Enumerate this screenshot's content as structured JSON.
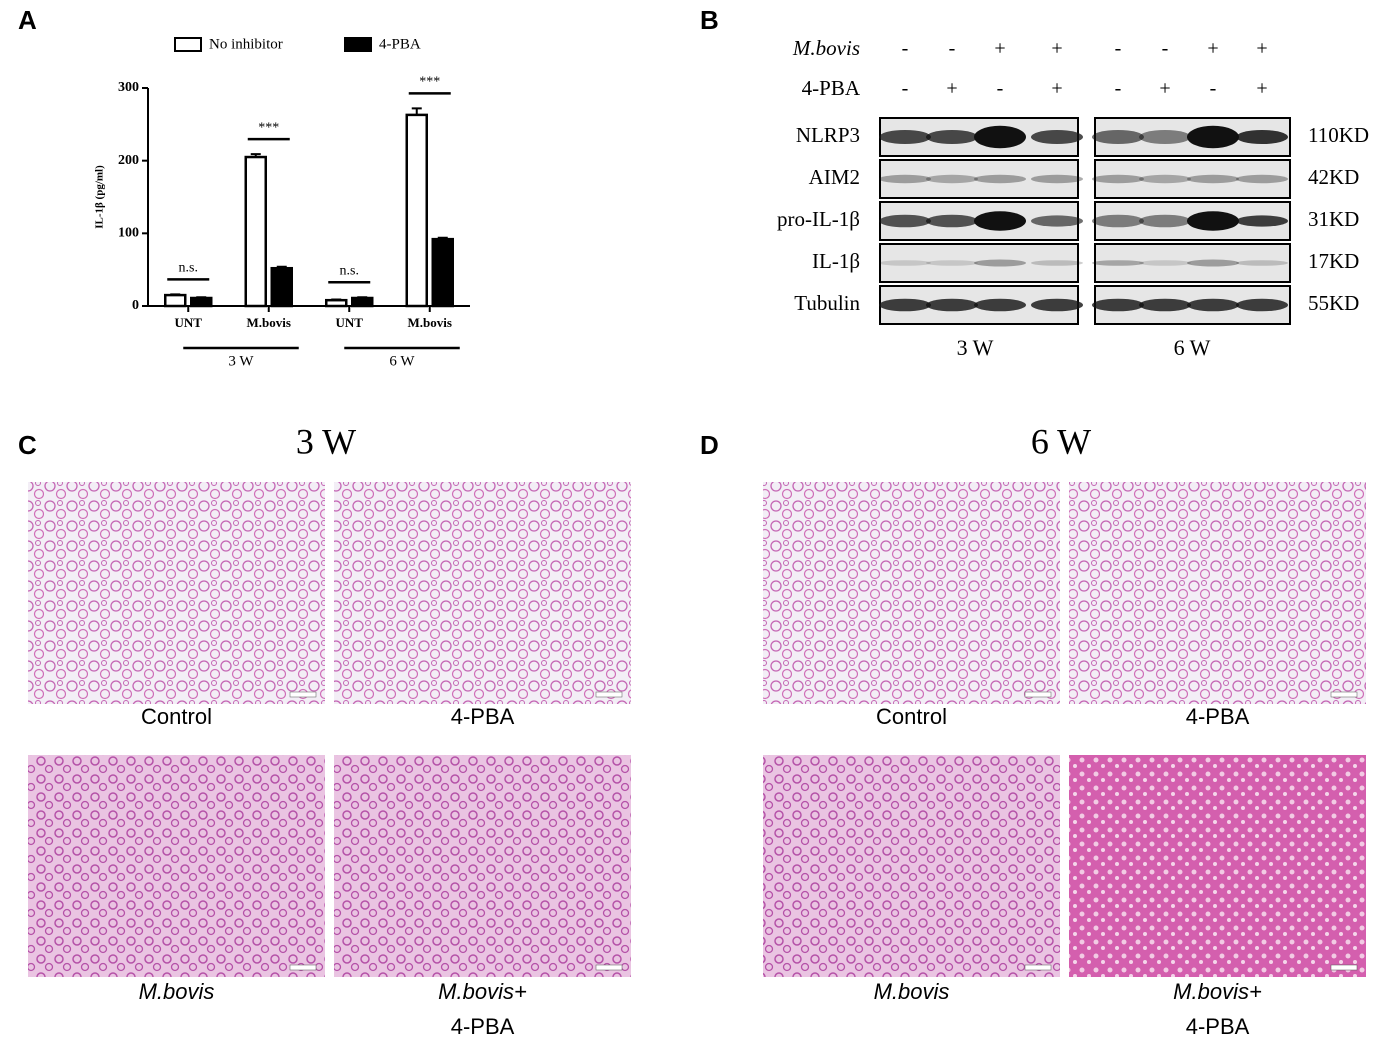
{
  "panel_labels": [
    "A",
    "B",
    "C",
    "D"
  ],
  "chart_data": {
    "type": "bar",
    "y_label": "IL-1β (pg/ml)",
    "categories": [
      "UNT",
      "M.bovis",
      "UNT",
      "M.bovis"
    ],
    "group_labels": [
      "3 W",
      "6 W"
    ],
    "series": [
      {
        "name": "No inhibitor",
        "color": "#ffffff",
        "values": [
          15,
          205,
          8,
          263
        ],
        "errors": [
          1,
          4,
          1,
          9
        ]
      },
      {
        "name": "4-PBA",
        "color": "#000000",
        "values": [
          11,
          52,
          11,
          92
        ],
        "errors": [
          1,
          2,
          1,
          2
        ]
      }
    ],
    "annotations": [
      "n.s.",
      "***",
      "n.s.",
      "***"
    ],
    "ylim": [
      0,
      300
    ],
    "yticks": [
      0,
      100,
      200,
      300
    ]
  },
  "blot": {
    "treatments": [
      {
        "name": "M.bovis",
        "signs": [
          "-",
          "-",
          "+",
          "+",
          "-",
          "-",
          "+",
          "+"
        ]
      },
      {
        "name": "4-PBA",
        "signs": [
          "-",
          "+",
          "-",
          "+",
          "-",
          "+",
          "-",
          "+"
        ]
      }
    ],
    "rows": [
      {
        "protein": "NLRP3",
        "size": "110KD"
      },
      {
        "protein": "AIM2",
        "size": "42KD"
      },
      {
        "protein": "pro-IL-1β",
        "size": "31KD"
      },
      {
        "protein": "IL-1β",
        "size": "17KD"
      },
      {
        "protein": "Tubulin",
        "size": "55KD"
      }
    ],
    "groups": [
      "3 W",
      "6 W"
    ]
  },
  "histology": [
    {
      "title": "3 W",
      "images": [
        {
          "label": "Control"
        },
        {
          "label": "4-PBA"
        },
        {
          "label": "M.bovis"
        },
        {
          "label": "M.bovis+",
          "sublabel": "4-PBA"
        }
      ]
    },
    {
      "title": "6 W",
      "images": [
        {
          "label": "Control"
        },
        {
          "label": "4-PBA"
        },
        {
          "label": "M.bovis"
        },
        {
          "label": "M.bovis+",
          "sublabel": "4-PBA"
        }
      ]
    }
  ]
}
